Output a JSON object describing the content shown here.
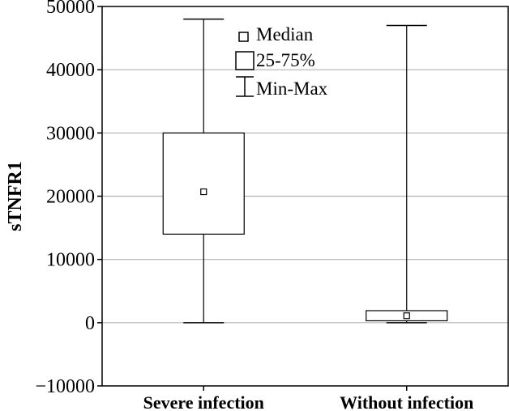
{
  "chart_data": {
    "type": "box",
    "ylabel": "sTNFR1",
    "ylim": [
      -10000,
      50000
    ],
    "yticks": [
      -10000,
      0,
      10000,
      20000,
      30000,
      40000,
      50000
    ],
    "ytick_labels": [
      "−10000",
      "0",
      "10000",
      "20000",
      "30000",
      "40000",
      "50000"
    ],
    "grid": "horizontal",
    "categories": [
      "Severe infection",
      "Without infection"
    ],
    "boxes": [
      {
        "category": "Severe infection",
        "min": 0,
        "q1": 14000,
        "median": 20700,
        "q3": 30000,
        "max": 48000
      },
      {
        "category": "Without infection",
        "min": 0,
        "q1": 300,
        "median": 1100,
        "q3": 1900,
        "max": 47000
      }
    ],
    "legend": {
      "placement": "top-center",
      "entries": [
        "Median",
        "25-75%",
        "Min-Max"
      ]
    },
    "colors": {
      "line": "#000000",
      "grid": "#b3b3b3",
      "background": "#ffffff"
    }
  }
}
